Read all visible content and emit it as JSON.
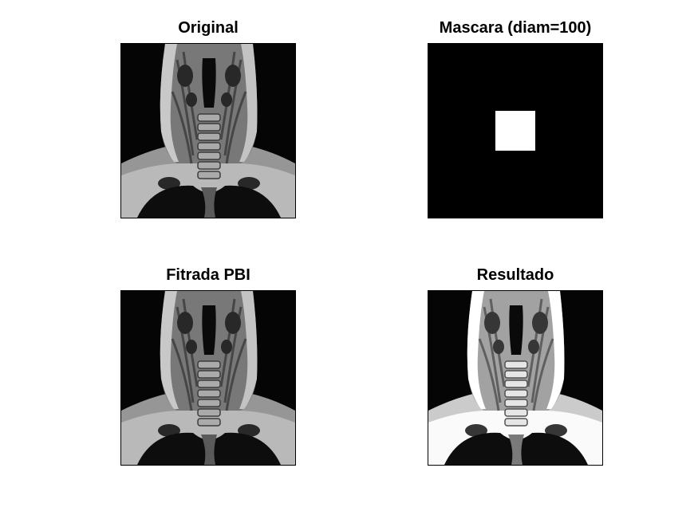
{
  "figure": {
    "panels": [
      {
        "title": "Original",
        "content": "neck-mri"
      },
      {
        "title": "Mascara (diam=100)",
        "content": "binary-mask"
      },
      {
        "title": "Fitrada PBI",
        "content": "neck-mri"
      },
      {
        "title": "Resultado",
        "content": "neck-mri-enhanced"
      }
    ],
    "colors": {
      "background": "#ffffff",
      "axes_border": "#000000",
      "mask_off": "#000000",
      "mask_on": "#ffffff"
    }
  }
}
